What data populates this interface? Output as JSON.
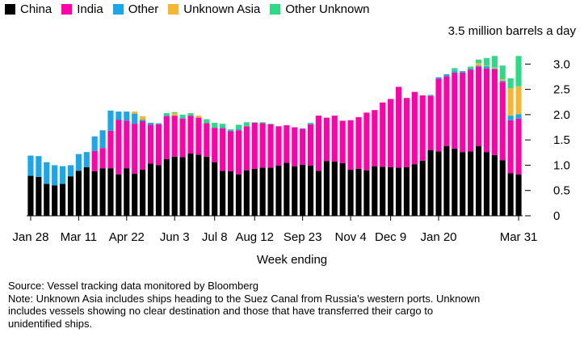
{
  "chart_data": {
    "type": "bar",
    "stacked": true,
    "unit_label": "3.5 million barrels a day",
    "xlabel": "Week ending",
    "ylim": [
      0,
      3.5
    ],
    "yticks": [
      0,
      0.5,
      1.0,
      1.5,
      2.0,
      2.5,
      3.0
    ],
    "ytick_labels": [
      "0",
      "0.5",
      "1.0",
      "1.5",
      "2.0",
      "2.5",
      "3.0"
    ],
    "xtick_labels": [
      {
        "label": "Jan 28",
        "index": 0
      },
      {
        "label": "Mar 11",
        "index": 6
      },
      {
        "label": "Apr 22",
        "index": 12
      },
      {
        "label": "Jun 3",
        "index": 18
      },
      {
        "label": "Jul 8",
        "index": 23
      },
      {
        "label": "Aug 12",
        "index": 28
      },
      {
        "label": "Sep 23",
        "index": 34
      },
      {
        "label": "Nov 4",
        "index": 40
      },
      {
        "label": "Dec 9",
        "index": 45
      },
      {
        "label": "Jan 20",
        "index": 51
      },
      {
        "label": "Mar 31",
        "index": 61
      }
    ],
    "legend_position": "top-left",
    "grid": false,
    "series": [
      {
        "name": "China",
        "color": "#000000",
        "values": [
          0.79,
          0.77,
          0.63,
          0.6,
          0.63,
          0.78,
          0.89,
          0.96,
          0.88,
          0.94,
          0.94,
          0.82,
          0.94,
          0.83,
          0.91,
          1.03,
          1.0,
          1.12,
          1.17,
          1.16,
          1.23,
          1.21,
          1.17,
          1.06,
          0.89,
          0.88,
          0.82,
          0.9,
          0.93,
          0.95,
          0.95,
          0.99,
          1.05,
          0.98,
          1.01,
          0.99,
          0.89,
          1.08,
          1.07,
          1.04,
          0.91,
          0.93,
          0.9,
          0.98,
          0.97,
          0.96,
          0.95,
          0.96,
          1.02,
          1.09,
          1.3,
          1.27,
          1.38,
          1.33,
          1.26,
          1.27,
          1.38,
          1.26,
          1.2,
          1.1,
          0.84,
          0.82
        ]
      },
      {
        "name": "India",
        "color": "#ff00aa",
        "values": [
          0.0,
          0.0,
          0.0,
          0.0,
          0.0,
          0.0,
          0.0,
          0.0,
          0.4,
          0.4,
          0.74,
          1.08,
          0.94,
          0.99,
          0.96,
          0.77,
          0.81,
          0.85,
          0.81,
          0.76,
          0.75,
          0.73,
          0.66,
          0.68,
          0.84,
          0.79,
          0.87,
          0.87,
          0.91,
          0.88,
          0.86,
          0.78,
          0.74,
          0.77,
          0.71,
          0.82,
          1.09,
          0.86,
          0.91,
          0.84,
          0.98,
          1.02,
          1.14,
          1.11,
          1.27,
          1.35,
          1.6,
          1.37,
          1.43,
          1.29,
          1.07,
          1.44,
          1.38,
          1.5,
          1.57,
          1.62,
          1.57,
          1.65,
          1.7,
          1.55,
          1.05,
          1.1
        ]
      },
      {
        "name": "Other",
        "color": "#1aa6e8",
        "values": [
          0.4,
          0.41,
          0.43,
          0.4,
          0.35,
          0.22,
          0.33,
          0.3,
          0.29,
          0.35,
          0.4,
          0.16,
          0.18,
          0.2,
          0.03,
          0.04,
          0.02,
          0.02,
          0.0,
          0.02,
          0.0,
          0.0,
          0.0,
          0.0,
          0.02,
          0.02,
          0.02,
          0.0,
          0.0,
          0.0,
          0.0,
          0.0,
          0.0,
          0.0,
          0.01,
          0.01,
          0.0,
          0.0,
          0.0,
          0.0,
          0.0,
          0.0,
          0.0,
          0.0,
          0.0,
          0.0,
          0.0,
          0.0,
          0.0,
          0.0,
          0.02,
          0.03,
          0.04,
          0.03,
          0.03,
          0.02,
          0.02,
          0.05,
          0.01,
          0.02,
          0.09,
          0.09
        ]
      },
      {
        "name": "Unknown Asia",
        "color": "#f5b731",
        "values": [
          0.0,
          0.0,
          0.0,
          0.0,
          0.0,
          0.0,
          0.0,
          0.0,
          0.0,
          0.0,
          0.0,
          0.0,
          0.0,
          0.04,
          0.07,
          0.0,
          0.0,
          0.0,
          0.05,
          0.0,
          0.0,
          0.04,
          0.0,
          0.0,
          0.0,
          0.0,
          0.0,
          0.0,
          0.0,
          0.0,
          0.0,
          0.0,
          0.0,
          0.0,
          0.0,
          0.0,
          0.0,
          0.0,
          0.0,
          0.0,
          0.0,
          0.0,
          0.0,
          0.0,
          0.0,
          0.0,
          0.0,
          0.0,
          0.0,
          0.0,
          0.0,
          0.0,
          0.0,
          0.0,
          0.0,
          0.0,
          0.05,
          0.01,
          0.02,
          0.03,
          0.54,
          0.55
        ]
      },
      {
        "name": "Other Unknown",
        "color": "#2ddb87",
        "values": [
          0.0,
          0.0,
          0.0,
          0.0,
          0.0,
          0.0,
          0.0,
          0.0,
          0.0,
          0.0,
          0.0,
          0.0,
          0.0,
          0.0,
          0.0,
          0.0,
          0.0,
          0.04,
          0.02,
          0.06,
          0.05,
          0.0,
          0.08,
          0.1,
          0.07,
          0.02,
          0.09,
          0.08,
          0.01,
          0.02,
          0.01,
          0.0,
          0.0,
          0.0,
          0.0,
          0.02,
          0.0,
          0.0,
          0.0,
          0.0,
          0.0,
          0.0,
          0.0,
          0.0,
          0.0,
          0.0,
          0.0,
          0.0,
          0.0,
          0.0,
          0.0,
          0.0,
          0.0,
          0.06,
          0.0,
          0.04,
          0.07,
          0.15,
          0.23,
          0.27,
          0.2,
          0.6
        ]
      }
    ]
  },
  "notes": {
    "source": "Source: Vessel tracking data monitored by Bloomberg",
    "note_line1": "Note: Unknown Asia includes ships heading to the Suez Canal from Russia's western ports. Unknown",
    "note_line2": "includes vessels showing no clear destination and those that have transferred their cargo to",
    "note_line3": "unidentified ships."
  }
}
